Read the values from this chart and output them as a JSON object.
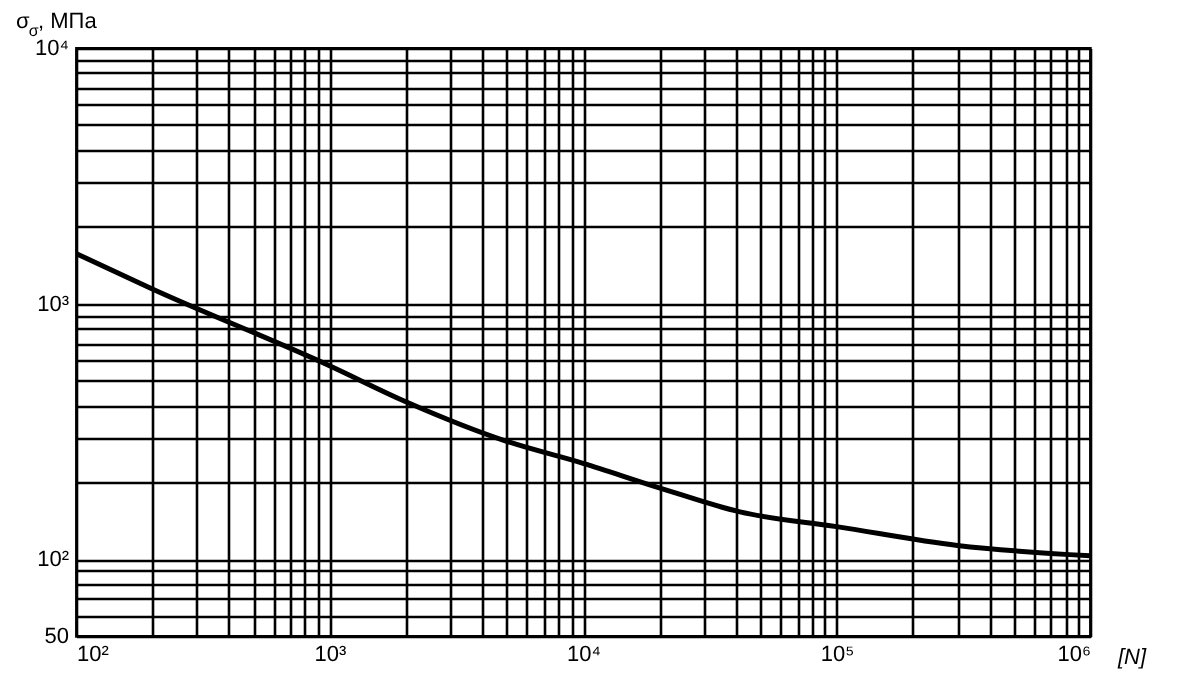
{
  "chart_data": {
    "type": "line",
    "xlabel": "[N]",
    "ylabel": "σ$_{σ}$, МПа",
    "log": "xy",
    "grid": true,
    "marker": "none",
    "line_style": "solid",
    "x": [
      100,
      200,
      1000,
      2000,
      5000,
      10000,
      20000,
      41600,
      100000,
      300000,
      1000000
    ],
    "series": [
      {
        "color": "#000000",
        "values": [
          1570,
          1140,
          571,
          413,
          289,
          237,
          190,
          153,
          134,
          113,
          103
        ]
      }
    ],
    "xlim": [
      100,
      1000000
    ],
    "ylim": [
      50,
      10000
    ],
    "xticks": [
      {
        "value": 100,
        "label": "10²"
      },
      {
        "value": 200,
        "label": null
      },
      {
        "value": 300,
        "label": null
      },
      {
        "value": 400,
        "label": null
      },
      {
        "value": 500,
        "label": null
      },
      {
        "value": 600,
        "label": null
      },
      {
        "value": 700,
        "label": null
      },
      {
        "value": 800,
        "label": null
      },
      {
        "value": 900,
        "label": null
      },
      {
        "value": 1000,
        "label": "10³"
      },
      {
        "value": 2000,
        "label": null
      },
      {
        "value": 3000,
        "label": null
      },
      {
        "value": 4000,
        "label": null
      },
      {
        "value": 5000,
        "label": null
      },
      {
        "value": 6000,
        "label": null
      },
      {
        "value": 7000,
        "label": null
      },
      {
        "value": 8000,
        "label": null
      },
      {
        "value": 9000,
        "label": null
      },
      {
        "value": 10000,
        "label": "10⁴"
      },
      {
        "value": 20000,
        "label": null
      },
      {
        "value": 30000,
        "label": null
      },
      {
        "value": 40000,
        "label": null
      },
      {
        "value": 50000,
        "label": null
      },
      {
        "value": 60000,
        "label": null
      },
      {
        "value": 70000,
        "label": null
      },
      {
        "value": 80000,
        "label": null
      },
      {
        "value": 90000,
        "label": null
      },
      {
        "value": 100000,
        "label": "10⁵"
      },
      {
        "value": 200000,
        "label": null
      },
      {
        "value": 300000,
        "label": null
      },
      {
        "value": 400000,
        "label": null
      },
      {
        "value": 500000,
        "label": null
      },
      {
        "value": 600000,
        "label": null
      },
      {
        "value": 700000,
        "label": null
      },
      {
        "value": 800000,
        "label": null
      },
      {
        "value": 900000,
        "label": null
      },
      {
        "value": 1000000,
        "label": "10⁶"
      }
    ],
    "yticks": [
      50,
      {
        "value": 60,
        "label": null
      },
      {
        "value": 70,
        "label": null
      },
      {
        "value": 80,
        "label": null
      },
      {
        "value": 90,
        "label": null
      },
      {
        "value": 100,
        "label": "10²"
      },
      {
        "value": 200,
        "label": null
      },
      {
        "value": 300,
        "label": null
      },
      {
        "value": 400,
        "label": null
      },
      {
        "value": 500,
        "label": null
      },
      {
        "value": 600,
        "label": null
      },
      {
        "value": 700,
        "label": null
      },
      {
        "value": 800,
        "label": null
      },
      {
        "value": 900,
        "label": null
      },
      {
        "value": 1000,
        "label": "10³"
      },
      {
        "value": 2000,
        "label": null
      },
      {
        "value": 3000,
        "label": null
      },
      {
        "value": 4000,
        "label": null
      },
      {
        "value": 5000,
        "label": null
      },
      {
        "value": 6000,
        "label": null
      },
      {
        "value": 7000,
        "label": null
      },
      {
        "value": 8000,
        "label": null
      },
      {
        "value": 9000,
        "label": null
      },
      {
        "value": 10000,
        "label": "10⁴"
      }
    ]
  }
}
